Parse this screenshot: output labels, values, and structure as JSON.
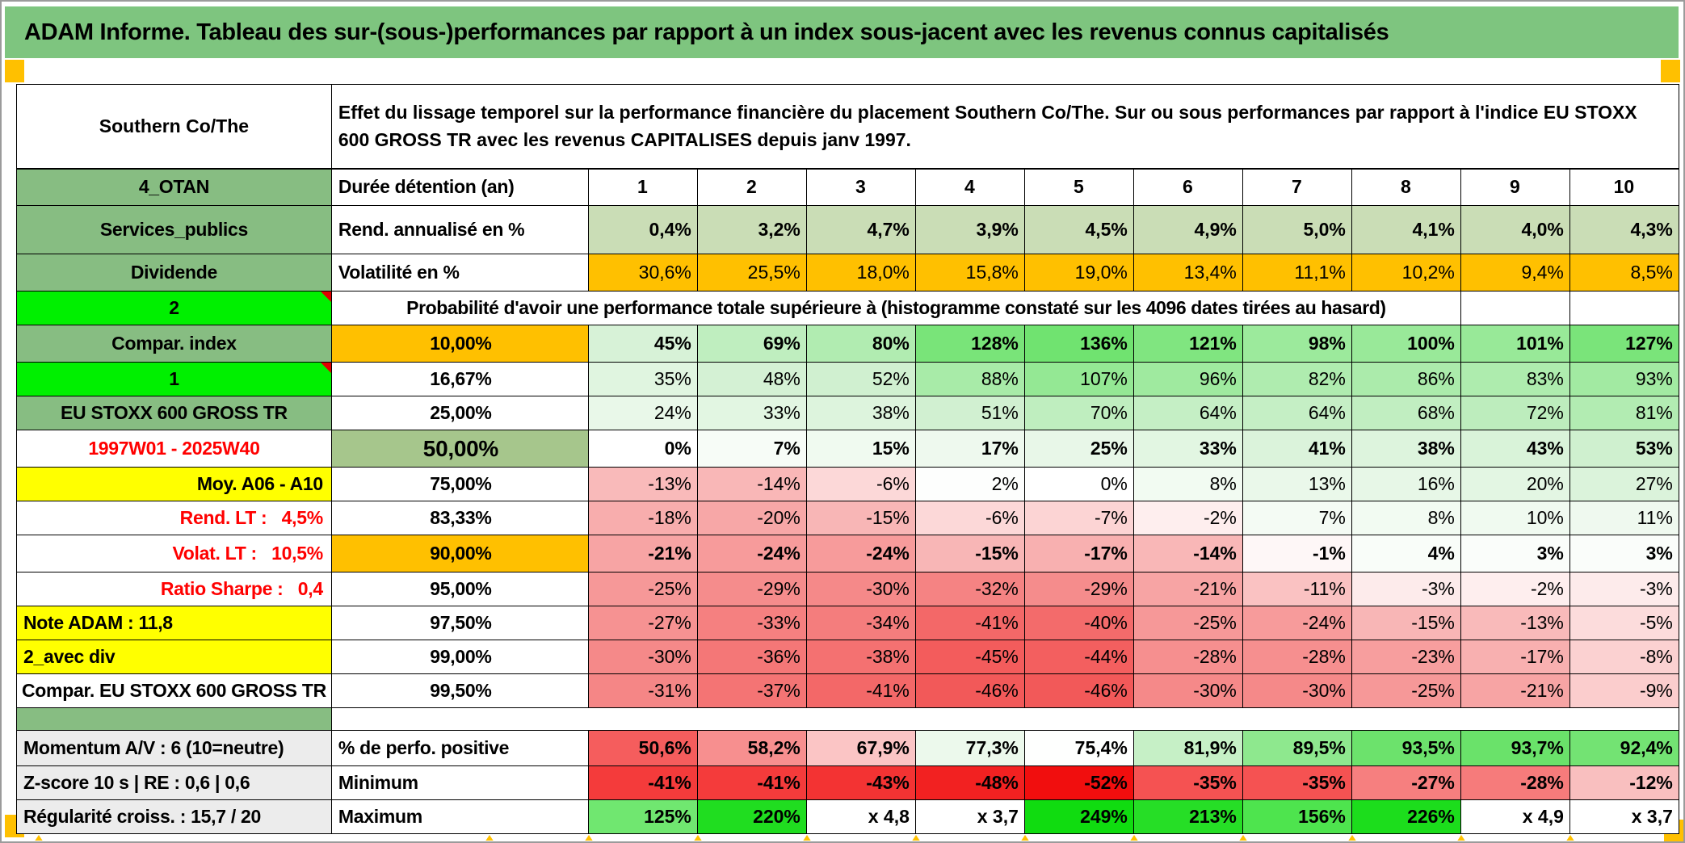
{
  "title": "ADAM Informe. Tableau des sur-(sous-)performances par rapport à un index sous-jacent avec les revenus connus capitalisés",
  "header": {
    "name": "Southern Co/The",
    "description": "Effet du lissage temporel sur la performance financière du placement Southern Co/The. Sur ou sous performances par rapport à l'indice EU STOXX 600 GROSS TR avec les revenus CAPITALISES depuis janv 1997."
  },
  "colors": {
    "title_green": "#7ec57f",
    "label_green": "#87bd82",
    "sage_green": "#a6c68c",
    "bright_green": "#00f000",
    "orange": "#ffc000",
    "yellow": "#ffff00",
    "gray_label": "#ececec",
    "red_text": "#ff0000",
    "rend_cells": "#caddb6"
  },
  "table": {
    "rows": [
      {
        "cls": "cb",
        "label": {
          "t": "4_OTAN",
          "bg": "#87bd82"
        },
        "sub": {
          "t": "Durée détention (an)",
          "bg": "#ffffff"
        },
        "cellsAlign": "c",
        "cells": [
          [
            "1",
            "#ffffff"
          ],
          [
            "2",
            "#ffffff"
          ],
          [
            "3",
            "#ffffff"
          ],
          [
            "4",
            "#ffffff"
          ],
          [
            "5",
            "#ffffff"
          ],
          [
            "6",
            "#ffffff"
          ],
          [
            "7",
            "#ffffff"
          ],
          [
            "8",
            "#ffffff"
          ],
          [
            "9",
            "#ffffff"
          ],
          [
            "10",
            "#ffffff"
          ]
        ]
      },
      {
        "cls": "cb",
        "label": {
          "t": "Services_publics",
          "bg": "#87bd82"
        },
        "sub": {
          "t": "Rend. annualisé en %",
          "bg": "#ffffff"
        },
        "cells": [
          [
            "0,4%",
            "#caddb6"
          ],
          [
            "3,2%",
            "#caddb6"
          ],
          [
            "4,7%",
            "#caddb6"
          ],
          [
            "3,9%",
            "#caddb6"
          ],
          [
            "4,5%",
            "#caddb6"
          ],
          [
            "4,9%",
            "#caddb6"
          ],
          [
            "5,0%",
            "#caddb6"
          ],
          [
            "4,1%",
            "#caddb6"
          ],
          [
            "4,0%",
            "#caddb6"
          ],
          [
            "4,3%",
            "#caddb6"
          ]
        ]
      },
      {
        "label": {
          "t": "Dividende",
          "bg": "#87bd82"
        },
        "sub": {
          "t": "Volatilité en %",
          "bg": "#ffffff"
        },
        "cells": [
          [
            "30,6%",
            "#ffc000"
          ],
          [
            "25,5%",
            "#ffc000"
          ],
          [
            "18,0%",
            "#ffc000"
          ],
          [
            "15,8%",
            "#ffc000"
          ],
          [
            "19,0%",
            "#ffc000"
          ],
          [
            "13,4%",
            "#ffc000"
          ],
          [
            "11,1%",
            "#ffc000"
          ],
          [
            "10,2%",
            "#ffc000"
          ],
          [
            "9,4%",
            "#ffc000"
          ],
          [
            "8,5%",
            "#ffc000"
          ]
        ]
      },
      {
        "type": "span",
        "label": {
          "t": "2",
          "bg": "#00f000",
          "corner": true
        },
        "span": {
          "t": "Probabilité d'avoir une performance totale supérieure à (histogramme constaté sur les 4096 dates tirées au hasard)",
          "bg": "#ffffff",
          "cols": 9
        },
        "tail": [
          [
            "",
            "#ffffff"
          ],
          [
            "",
            "#ffffff"
          ]
        ]
      },
      {
        "cls": "cb",
        "label": {
          "t": "Compar. index",
          "bg": "#87bd82"
        },
        "sub": {
          "t": "10,00%",
          "bg": "#ffc000",
          "align": "c"
        },
        "cells": [
          [
            "45%",
            "#d7f2d7"
          ],
          [
            "69%",
            "#bfeebf"
          ],
          [
            "80%",
            "#b1ecb1"
          ],
          [
            "128%",
            "#79e479"
          ],
          [
            "136%",
            "#70e370"
          ],
          [
            "121%",
            "#80e580"
          ],
          [
            "98%",
            "#9cea9c"
          ],
          [
            "100%",
            "#99e999"
          ],
          [
            "101%",
            "#98e998"
          ],
          [
            "127%",
            "#7ae47a"
          ]
        ]
      },
      {
        "label": {
          "t": "1",
          "bg": "#00f000",
          "corner": true
        },
        "sub": {
          "t": "16,67%",
          "bg": "#ffffff",
          "align": "c"
        },
        "cells": [
          [
            "35%",
            "#e0f5e0"
          ],
          [
            "48%",
            "#d4f1d4"
          ],
          [
            "52%",
            "#d0f0d0"
          ],
          [
            "88%",
            "#a8eba8"
          ],
          [
            "107%",
            "#94e894"
          ],
          [
            "96%",
            "#9fea9f"
          ],
          [
            "82%",
            "#afecaf"
          ],
          [
            "86%",
            "#abebab"
          ],
          [
            "83%",
            "#aeecae"
          ],
          [
            "93%",
            "#a2eaa2"
          ]
        ]
      },
      {
        "label": {
          "t": "EU STOXX 600 GROSS TR",
          "bg": "#87bd82",
          "long": true
        },
        "sub": {
          "t": "25,00%",
          "bg": "#ffffff",
          "align": "c"
        },
        "cells": [
          [
            "24%",
            "#e9f8e9"
          ],
          [
            "33%",
            "#e2f6e2"
          ],
          [
            "38%",
            "#ddf4dd"
          ],
          [
            "51%",
            "#d1f0d1"
          ],
          [
            "70%",
            "#bfeebf"
          ],
          [
            "64%",
            "#c5efc5"
          ],
          [
            "64%",
            "#c5efc5"
          ],
          [
            "68%",
            "#c1eec1"
          ],
          [
            "72%",
            "#bdedbd"
          ],
          [
            "81%",
            "#b2ecb2"
          ]
        ]
      },
      {
        "cls": "cb",
        "label": {
          "t": "1997W01 - 2025W40",
          "color": "#ff0000",
          "bg": "#ffffff"
        },
        "sub": {
          "t": "50,00%",
          "bg": "#a6c68c",
          "align": "c",
          "big": true
        },
        "cells": [
          [
            "0%",
            "#ffffff"
          ],
          [
            "7%",
            "#f7fcf7"
          ],
          [
            "15%",
            "#f0faf0"
          ],
          [
            "17%",
            "#eef9ee"
          ],
          [
            "25%",
            "#e8f7e8"
          ],
          [
            "33%",
            "#e2f6e2"
          ],
          [
            "41%",
            "#dbf3db"
          ],
          [
            "38%",
            "#ddf4dd"
          ],
          [
            "43%",
            "#d9f3d9"
          ],
          [
            "53%",
            "#cff0cf"
          ]
        ]
      },
      {
        "label": {
          "t": "Moy. A06 - A10",
          "bg": "#ffff00",
          "align": "r"
        },
        "sub": {
          "t": "75,00%",
          "bg": "#ffffff",
          "align": "c"
        },
        "cells": [
          [
            "-13%",
            "#f9baba"
          ],
          [
            "-14%",
            "#f9b7b7"
          ],
          [
            "-6%",
            "#fcd8d8"
          ],
          [
            "2%",
            "#fdfefd"
          ],
          [
            "0%",
            "#ffffff"
          ],
          [
            "8%",
            "#f2fbf2"
          ],
          [
            "13%",
            "#eaf8ea"
          ],
          [
            "16%",
            "#e7f7e7"
          ],
          [
            "20%",
            "#e3f6e3"
          ],
          [
            "27%",
            "#dbf3db"
          ]
        ]
      },
      {
        "label": {
          "t": "Rend. LT :   4,5%",
          "color": "#ff0000",
          "bg": "#ffffff",
          "align": "r"
        },
        "sub": {
          "t": "83,33%",
          "bg": "#ffffff",
          "align": "c"
        },
        "cells": [
          [
            "-18%",
            "#f8adad"
          ],
          [
            "-20%",
            "#f7a7a7"
          ],
          [
            "-15%",
            "#f8b6b6"
          ],
          [
            "-6%",
            "#fcd8d8"
          ],
          [
            "-7%",
            "#fcd4d4"
          ],
          [
            "-2%",
            "#feeeee"
          ],
          [
            "7%",
            "#f4fbf4"
          ],
          [
            "8%",
            "#f2fbf2"
          ],
          [
            "10%",
            "#f0faf0"
          ],
          [
            "11%",
            "#eff9ef"
          ]
        ]
      },
      {
        "cls": "cb",
        "label": {
          "t": "Volat. LT :   10,5%",
          "color": "#ff0000",
          "bg": "#ffffff",
          "align": "r"
        },
        "sub": {
          "t": "90,00%",
          "bg": "#ffc000",
          "align": "c"
        },
        "cells": [
          [
            "-21%",
            "#f7a4a4"
          ],
          [
            "-24%",
            "#f79b9b"
          ],
          [
            "-24%",
            "#f79b9b"
          ],
          [
            "-15%",
            "#f8b6b6"
          ],
          [
            "-17%",
            "#f8b0b0"
          ],
          [
            "-14%",
            "#f9b7b7"
          ],
          [
            "-1%",
            "#fef7f7"
          ],
          [
            "4%",
            "#f9fdf9"
          ],
          [
            "3%",
            "#fafdfa"
          ],
          [
            "3%",
            "#fafdfa"
          ]
        ]
      },
      {
        "cls": "secb",
        "label": {
          "t": "Ratio Sharpe :   0,4",
          "color": "#ff0000",
          "bg": "#ffffff",
          "align": "r"
        },
        "sub": {
          "t": "95,00%",
          "bg": "#ffffff",
          "align": "c"
        },
        "cells": [
          [
            "-25%",
            "#f69898"
          ],
          [
            "-29%",
            "#f58c8c"
          ],
          [
            "-30%",
            "#f58989"
          ],
          [
            "-32%",
            "#f58383"
          ],
          [
            "-29%",
            "#f58c8c"
          ],
          [
            "-21%",
            "#f7a4a4"
          ],
          [
            "-11%",
            "#fac2c2"
          ],
          [
            "-3%",
            "#fdebeb"
          ],
          [
            "-2%",
            "#feeeee"
          ],
          [
            "-3%",
            "#fdebeb"
          ]
        ]
      },
      {
        "label": {
          "t": "Note ADAM : 11,8",
          "bg": "#ffff00",
          "align": "l"
        },
        "sub": {
          "t": "97,50%",
          "bg": "#ffffff",
          "align": "c"
        },
        "cells": [
          [
            "-27%",
            "#f69292"
          ],
          [
            "-33%",
            "#f58080"
          ],
          [
            "-34%",
            "#f47d7d"
          ],
          [
            "-41%",
            "#f36868"
          ],
          [
            "-40%",
            "#f36b6b"
          ],
          [
            "-25%",
            "#f69898"
          ],
          [
            "-24%",
            "#f79b9b"
          ],
          [
            "-15%",
            "#f8b6b6"
          ],
          [
            "-13%",
            "#f9baba"
          ],
          [
            "-5%",
            "#fcdcdc"
          ]
        ]
      },
      {
        "label": {
          "t": "2_avec div",
          "bg": "#ffff00",
          "align": "l"
        },
        "sub": {
          "t": "99,00%",
          "bg": "#ffffff",
          "align": "c"
        },
        "cells": [
          [
            "-30%",
            "#f58989"
          ],
          [
            "-36%",
            "#f47777"
          ],
          [
            "-38%",
            "#f47171"
          ],
          [
            "-45%",
            "#f35c5c"
          ],
          [
            "-44%",
            "#f35f5f"
          ],
          [
            "-28%",
            "#f68f8f"
          ],
          [
            "-28%",
            "#f68f8f"
          ],
          [
            "-23%",
            "#f79e9e"
          ],
          [
            "-17%",
            "#f8b0b0"
          ],
          [
            "-8%",
            "#fbd1d1"
          ]
        ]
      },
      {
        "label": {
          "t": "Compar. EU STOXX 600 GROSS TR",
          "bg": "#ffffff",
          "long": true
        },
        "sub": {
          "t": "99,50%",
          "bg": "#ffffff",
          "align": "c"
        },
        "cells": [
          [
            "-31%",
            "#f58686"
          ],
          [
            "-37%",
            "#f47474"
          ],
          [
            "-41%",
            "#f36868"
          ],
          [
            "-46%",
            "#f25959"
          ],
          [
            "-46%",
            "#f25959"
          ],
          [
            "-30%",
            "#f58989"
          ],
          [
            "-30%",
            "#f58989"
          ],
          [
            "-25%",
            "#f69898"
          ],
          [
            "-21%",
            "#f7a4a4"
          ],
          [
            "-9%",
            "#fbcdcd"
          ]
        ]
      },
      {
        "type": "spacer",
        "label": {
          "t": "",
          "bg": "#87bd82"
        }
      },
      {
        "cls": "cb sec",
        "label": {
          "t": "Momentum A/V : 6 (10=neutre)",
          "bg": "#ececec",
          "align": "l",
          "long": true
        },
        "sub": {
          "t": "% de perfo. positive",
          "bg": "#ffffff"
        },
        "cells": [
          [
            "50,6%",
            "#f55d5d"
          ],
          [
            "58,2%",
            "#f78f8f"
          ],
          [
            "67,9%",
            "#fbc5c5"
          ],
          [
            "77,3%",
            "#ecf9ec"
          ],
          [
            "75,4%",
            "#fefffe"
          ],
          [
            "81,9%",
            "#c6f0c6"
          ],
          [
            "89,5%",
            "#8ee88e"
          ],
          [
            "93,5%",
            "#6ce26c"
          ],
          [
            "93,7%",
            "#6ae26a"
          ],
          [
            "92,4%",
            "#73e373"
          ]
        ]
      },
      {
        "cls": "cb",
        "label": {
          "t": "Z-score 10 s | RE : 0,6 | 0,6",
          "bg": "#ececec",
          "align": "l",
          "long": true
        },
        "sub": {
          "t": "Minimum",
          "bg": "#ffffff"
        },
        "cells": [
          [
            "-41%",
            "#f43b3b"
          ],
          [
            "-41%",
            "#f43b3b"
          ],
          [
            "-43%",
            "#f33333"
          ],
          [
            "-48%",
            "#f22121"
          ],
          [
            "-52%",
            "#f10e0e"
          ],
          [
            "-35%",
            "#f55252"
          ],
          [
            "-35%",
            "#f55252"
          ],
          [
            "-27%",
            "#f67f7f"
          ],
          [
            "-28%",
            "#f67b7b"
          ],
          [
            "-12%",
            "#f9bfbf"
          ]
        ]
      },
      {
        "cls": "cb secb",
        "label": {
          "t": "Régularité croiss. : 15,7 / 20",
          "bg": "#ececec",
          "align": "l",
          "long": true
        },
        "sub": {
          "t": "Maximum",
          "bg": "#ffffff"
        },
        "cells": [
          [
            "125%",
            "#70e770"
          ],
          [
            "220%",
            "#20dd20"
          ],
          [
            "x 4,8",
            "#ffffff"
          ],
          [
            "x 3,7",
            "#ffffff"
          ],
          [
            "249%",
            "#10dc10"
          ],
          [
            "213%",
            "#26de26"
          ],
          [
            "156%",
            "#4ee44e"
          ],
          [
            "226%",
            "#1cdd1c"
          ],
          [
            "x 4,9",
            "#ffffff"
          ],
          [
            "x 3,7",
            "#ffffff"
          ]
        ]
      }
    ]
  }
}
